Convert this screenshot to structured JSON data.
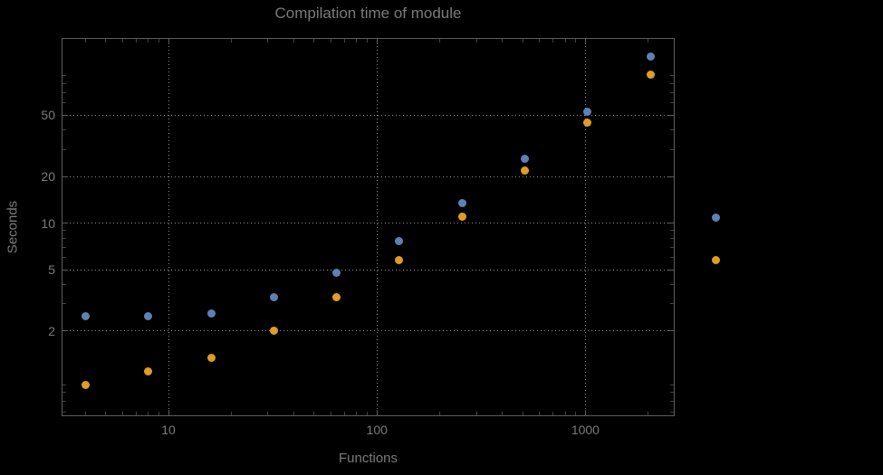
{
  "colors": {
    "background": "#000000",
    "grid": "#8f8f8f",
    "frame": "#5c5c5c",
    "text": "#7b7b7b",
    "series1": "#5e81b5",
    "series2": "#e19c24"
  },
  "chart_data": {
    "type": "scatter",
    "title": "Compilation time of module",
    "xlabel": "Functions",
    "ylabel": "Seconds",
    "xscale": "log",
    "yscale": "log",
    "xlim": [
      3.1,
      2655
    ],
    "ylim": [
      0.57,
      156
    ],
    "grid": "dotted",
    "x": [
      4,
      8,
      16,
      32,
      64,
      128,
      256,
      512,
      1024,
      2048
    ],
    "series": [
      {
        "name": "blue",
        "color": "#5e81b5",
        "values": [
          2.5,
          2.5,
          2.6,
          3.3,
          4.8,
          7.7,
          13.5,
          26,
          53,
          120
        ]
      },
      {
        "name": "orange",
        "color": "#e19c24",
        "values": [
          0.9,
          1.1,
          1.35,
          2.0,
          3.3,
          5.8,
          11,
          22,
          45,
          91
        ]
      }
    ],
    "x_ticks": [
      10,
      100,
      1000
    ],
    "y_ticks": [
      2,
      5,
      10,
      20,
      50
    ],
    "legend": {
      "position": "outside-right",
      "entries": [
        {
          "color": "#5e81b5"
        },
        {
          "color": "#e19c24"
        }
      ]
    }
  }
}
